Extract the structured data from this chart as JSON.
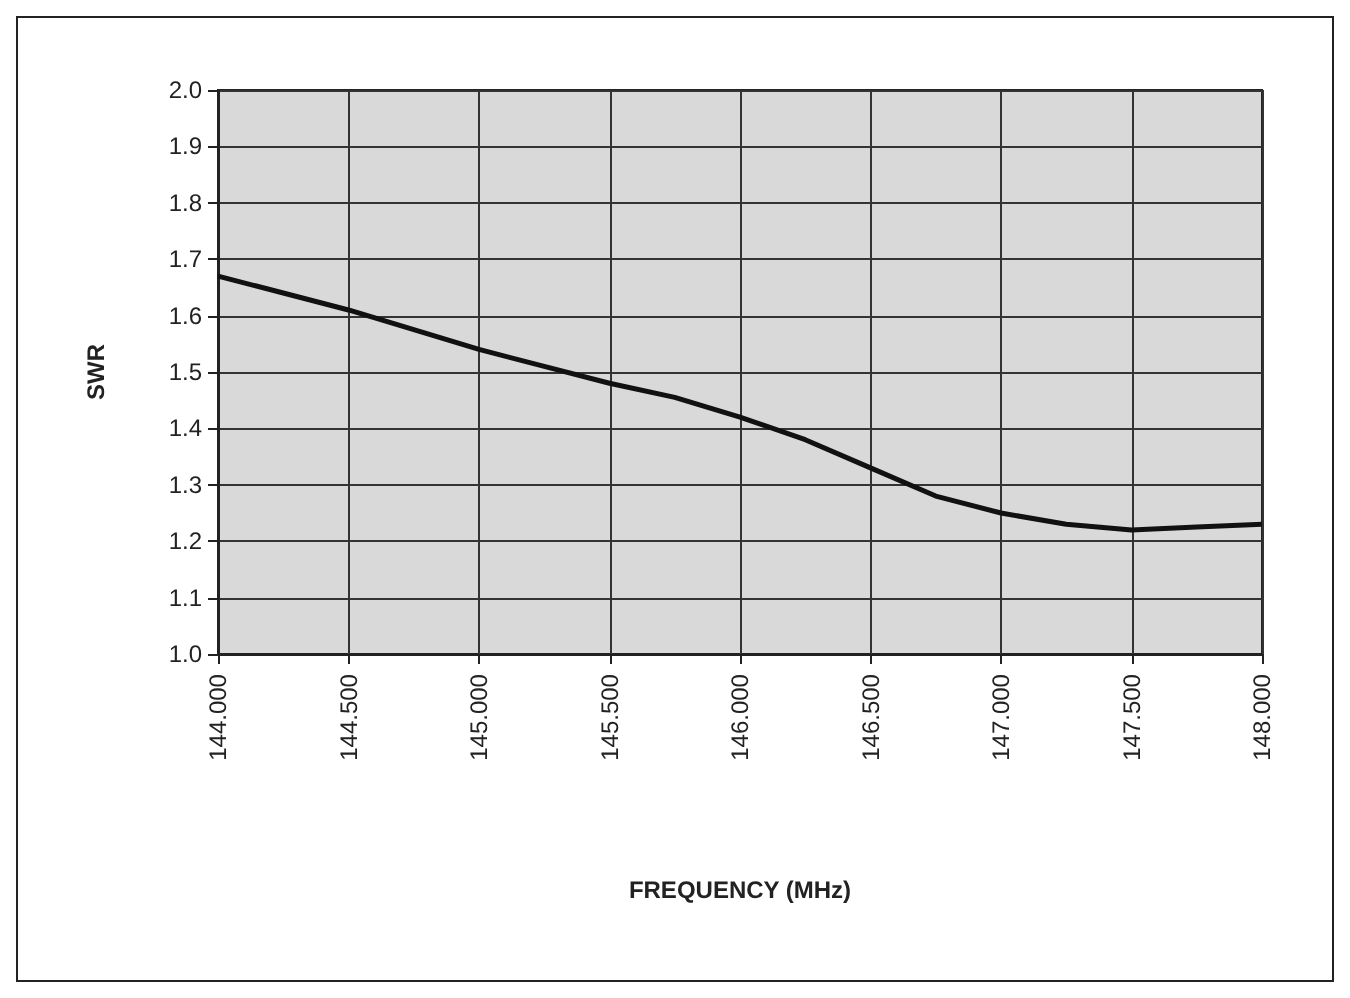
{
  "chart_data": {
    "type": "line",
    "xlabel": "FREQUENCY (MHz)",
    "ylabel": "SWR",
    "x": [
      144,
      144.25,
      144.5,
      144.75,
      145,
      145.25,
      145.5,
      145.75,
      146,
      146.25,
      146.5,
      146.75,
      147,
      147.25,
      147.5,
      147.75,
      148
    ],
    "series": [
      {
        "color": "#111111",
        "values": [
          1.67,
          1.64,
          1.61,
          1.575,
          1.54,
          1.51,
          1.48,
          1.455,
          1.42,
          1.38,
          1.33,
          1.28,
          1.25,
          1.23,
          1.22,
          1.225,
          1.23
        ]
      }
    ],
    "xlim": [
      144,
      148
    ],
    "xticks": [
      {
        "value": 144,
        "label": "144.000"
      },
      {
        "value": 144.5,
        "label": "144.500"
      },
      {
        "value": 145,
        "label": "145.000"
      },
      {
        "value": 145.5,
        "label": "145.500"
      },
      {
        "value": 146,
        "label": "146.000"
      },
      {
        "value": 146.5,
        "label": "146.500"
      },
      {
        "value": 147,
        "label": "147.000"
      },
      {
        "value": 147.5,
        "label": "147.500"
      },
      {
        "value": 148,
        "label": "148.000"
      }
    ],
    "ylim": [
      1,
      2
    ],
    "yticks": [
      {
        "value": 1,
        "label": "1.0"
      },
      1.1,
      1.2,
      1.3,
      1.4,
      1.5,
      1.6,
      1.7,
      1.8,
      1.9,
      {
        "value": 2,
        "label": "2.0"
      }
    ],
    "grid": true,
    "marker": "none",
    "line_style": "solid"
  }
}
